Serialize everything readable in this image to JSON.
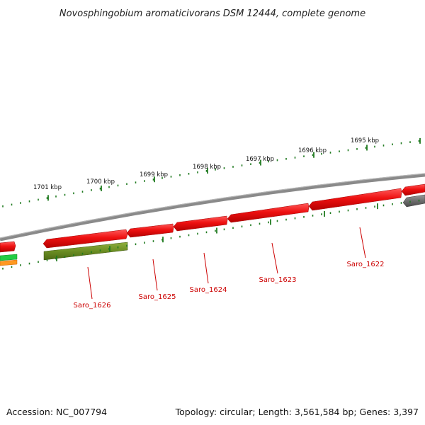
{
  "title": "Novosphingobium aromaticivorans DSM 12444, complete genome",
  "footer": {
    "accession": "Accession: NC_007794",
    "summary": "Topology: circular; Length: 3,561,584 bp; Genes: 3,397"
  },
  "ruler_labels": [
    "1701 kbp",
    "1700 kbp",
    "1699 kbp",
    "1698 kbp",
    "1697 kbp",
    "1696 kbp",
    "1695 kbp"
  ],
  "gene_labels": [
    "Saro_1626",
    "Saro_1625",
    "Saro_1624",
    "Saro_1623",
    "Saro_1622"
  ],
  "colors": {
    "backbone": "#8a8a8a",
    "forward_gene": "#ee1111",
    "reverse_gene_olive": "#6b8e23",
    "reverse_gene_gray": "#6e6e6e",
    "tick": "#1f7a1f",
    "label": "#cc0000"
  }
}
